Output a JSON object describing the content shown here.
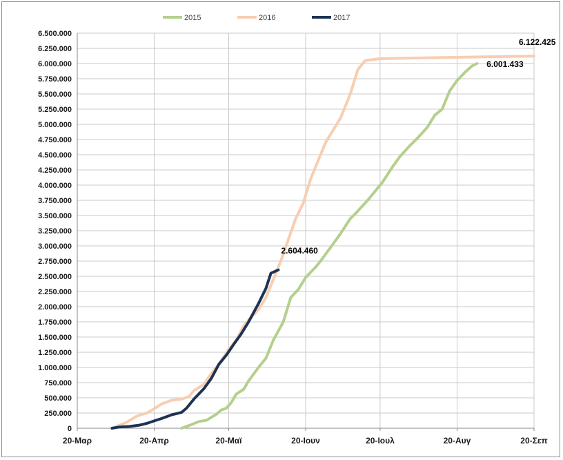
{
  "chart_data": {
    "type": "line",
    "title": "",
    "xlabel": "",
    "ylabel": "",
    "grid": true,
    "legend_position": "top",
    "x_ticks": [
      "20-Μαρ",
      "20-Απρ",
      "20-Μαϊ",
      "20-Ιουν",
      "20-Ιουλ",
      "20-Αυγ",
      "20-Σεπ"
    ],
    "xlim": [
      "20-Μαρ",
      "20-Σεπ"
    ],
    "ylim": [
      0,
      6500000
    ],
    "y_ticks": [
      {
        "value": 0,
        "label": "0"
      },
      {
        "value": 250000,
        "label": "250.000"
      },
      {
        "value": 500000,
        "label": "500.000"
      },
      {
        "value": 750000,
        "label": "750.000"
      },
      {
        "value": 1000000,
        "label": "1.000.000"
      },
      {
        "value": 1250000,
        "label": "1.250.000"
      },
      {
        "value": 1500000,
        "label": "1.500.000"
      },
      {
        "value": 1750000,
        "label": "1.750.000"
      },
      {
        "value": 2000000,
        "label": "2.000.000"
      },
      {
        "value": 2250000,
        "label": "2.250.000"
      },
      {
        "value": 2500000,
        "label": "2.500.000"
      },
      {
        "value": 2750000,
        "label": "2.750.000"
      },
      {
        "value": 3000000,
        "label": "3.000.000"
      },
      {
        "value": 3250000,
        "label": "3.250.000"
      },
      {
        "value": 3500000,
        "label": "3.500.000"
      },
      {
        "value": 3750000,
        "label": "3.750.000"
      },
      {
        "value": 4000000,
        "label": "4.000.000"
      },
      {
        "value": 4250000,
        "label": "4.250.000"
      },
      {
        "value": 4500000,
        "label": "4.500.000"
      },
      {
        "value": 4750000,
        "label": "4.750.000"
      },
      {
        "value": 5000000,
        "label": "5.000.000"
      },
      {
        "value": 5250000,
        "label": "5.250.000"
      },
      {
        "value": 5500000,
        "label": "5.500.000"
      },
      {
        "value": 5750000,
        "label": "5.750.000"
      },
      {
        "value": 6000000,
        "label": "6.000.000"
      },
      {
        "value": 6250000,
        "label": "6.250.000"
      },
      {
        "value": 6500000,
        "label": "6.500.000"
      }
    ],
    "series": [
      {
        "name": "2015",
        "color": "#b5cf8c",
        "points": [
          [
            "1-Μαϊ",
            0
          ],
          [
            "5-Μαϊ",
            60000
          ],
          [
            "8-Μαϊ",
            110000
          ],
          [
            "11-Μαϊ",
            130000
          ],
          [
            "15-Μαϊ",
            230000
          ],
          [
            "17-Μαϊ",
            300000
          ],
          [
            "19-Μαϊ",
            330000
          ],
          [
            "21-Μαϊ",
            420000
          ],
          [
            "23-Μαϊ",
            560000
          ],
          [
            "26-Μαϊ",
            640000
          ],
          [
            "28-Μαϊ",
            780000
          ],
          [
            "1-Ιουν",
            1000000
          ],
          [
            "4-Ιουν",
            1150000
          ],
          [
            "7-Ιουν",
            1450000
          ],
          [
            "11-Ιουν",
            1750000
          ],
          [
            "14-Ιουν",
            2150000
          ],
          [
            "17-Ιουν",
            2280000
          ],
          [
            "20-Ιουν",
            2480000
          ],
          [
            "24-Ιουν",
            2650000
          ],
          [
            "26-Ιουν",
            2750000
          ],
          [
            "1-Ιουλ",
            3030000
          ],
          [
            "4-Ιουλ",
            3200000
          ],
          [
            "8-Ιουλ",
            3450000
          ],
          [
            "10-Ιουλ",
            3530000
          ],
          [
            "15-Ιουλ",
            3750000
          ],
          [
            "18-Ιουλ",
            3900000
          ],
          [
            "21-Ιουλ",
            4050000
          ],
          [
            "25-Ιουλ",
            4300000
          ],
          [
            "28-Ιουλ",
            4470000
          ],
          [
            "1-Αυγ",
            4650000
          ],
          [
            "4-Αυγ",
            4770000
          ],
          [
            "8-Αυγ",
            4950000
          ],
          [
            "11-Αυγ",
            5150000
          ],
          [
            "14-Αυγ",
            5250000
          ],
          [
            "17-Αυγ",
            5550000
          ],
          [
            "20-Αυγ",
            5720000
          ],
          [
            "23-Αυγ",
            5850000
          ],
          [
            "26-Αυγ",
            5960000
          ],
          [
            "28-Αυγ",
            6001433
          ]
        ]
      },
      {
        "name": "2016",
        "color": "#f7ceb2",
        "points": [
          [
            "3-Απρ",
            0
          ],
          [
            "6-Απρ",
            50000
          ],
          [
            "9-Απρ",
            100000
          ],
          [
            "13-Απρ",
            200000
          ],
          [
            "17-Απρ",
            250000
          ],
          [
            "20-Απρ",
            320000
          ],
          [
            "23-Απρ",
            400000
          ],
          [
            "27-Απρ",
            460000
          ],
          [
            "1-Μαϊ",
            480000
          ],
          [
            "4-Μαϊ",
            520000
          ],
          [
            "6-Μαϊ",
            620000
          ],
          [
            "10-Μαϊ",
            720000
          ],
          [
            "13-Μαϊ",
            900000
          ],
          [
            "16-Μαϊ",
            1050000
          ],
          [
            "20-Μαϊ",
            1300000
          ],
          [
            "23-Μαϊ",
            1450000
          ],
          [
            "26-Μαϊ",
            1680000
          ],
          [
            "28-Μαϊ",
            1780000
          ],
          [
            "1-Ιουν",
            1950000
          ],
          [
            "4-Ιουν",
            2150000
          ],
          [
            "7-Ιουν",
            2450000
          ],
          [
            "10-Ιουν",
            2750000
          ],
          [
            "13-Ιουν",
            3100000
          ],
          [
            "16-Ιουν",
            3450000
          ],
          [
            "19-Ιουν",
            3700000
          ],
          [
            "22-Ιουν",
            4100000
          ],
          [
            "25-Ιουν",
            4400000
          ],
          [
            "28-Ιουν",
            4700000
          ],
          [
            "1-Ιουλ",
            4900000
          ],
          [
            "4-Ιουλ",
            5100000
          ],
          [
            "8-Ιουλ",
            5500000
          ],
          [
            "11-Ιουλ",
            5900000
          ],
          [
            "14-Ιουλ",
            6050000
          ],
          [
            "20-Ιουλ",
            6080000
          ],
          [
            "1-Αυγ",
            6090000
          ],
          [
            "15-Αυγ",
            6100000
          ],
          [
            "1-Σεπ",
            6110000
          ],
          [
            "20-Σεπ",
            6122425
          ]
        ]
      },
      {
        "name": "2017",
        "color": "#1c3355",
        "points": [
          [
            "3-Απρ",
            0
          ],
          [
            "6-Απρ",
            20000
          ],
          [
            "10-Απρ",
            30000
          ],
          [
            "14-Απρ",
            50000
          ],
          [
            "17-Απρ",
            80000
          ],
          [
            "20-Απρ",
            120000
          ],
          [
            "23-Απρ",
            160000
          ],
          [
            "27-Απρ",
            220000
          ],
          [
            "1-Μαϊ",
            260000
          ],
          [
            "3-Μαϊ",
            330000
          ],
          [
            "6-Μαϊ",
            480000
          ],
          [
            "10-Μαϊ",
            650000
          ],
          [
            "13-Μαϊ",
            820000
          ],
          [
            "16-Μαϊ",
            1050000
          ],
          [
            "19-Μαϊ",
            1200000
          ],
          [
            "22-Μαϊ",
            1380000
          ],
          [
            "25-Μαϊ",
            1550000
          ],
          [
            "28-Μαϊ",
            1750000
          ],
          [
            "1-Ιουν",
            2050000
          ],
          [
            "4-Ιουν",
            2300000
          ],
          [
            "6-Ιουν",
            2550000
          ],
          [
            "9-Ιουν",
            2604460
          ]
        ]
      }
    ],
    "annotations": [
      {
        "label": "6.122.425",
        "series": "2016"
      },
      {
        "label": "6.001.433",
        "series": "2015"
      },
      {
        "label": "2.604.460",
        "series": "2017"
      }
    ]
  }
}
